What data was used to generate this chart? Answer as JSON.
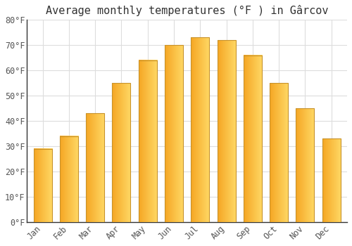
{
  "title": "Average monthly temperatures (°F ) in Gârcov",
  "months": [
    "Jan",
    "Feb",
    "Mar",
    "Apr",
    "May",
    "Jun",
    "Jul",
    "Aug",
    "Sep",
    "Oct",
    "Nov",
    "Dec"
  ],
  "values": [
    29,
    34,
    43,
    55,
    64,
    70,
    73,
    72,
    66,
    55,
    45,
    33
  ],
  "bar_color_left": "#F5A623",
  "bar_color_right": "#FFD966",
  "ylim": [
    0,
    80
  ],
  "yticks": [
    0,
    10,
    20,
    30,
    40,
    50,
    60,
    70,
    80
  ],
  "ytick_labels": [
    "0°F",
    "10°F",
    "20°F",
    "30°F",
    "40°F",
    "50°F",
    "60°F",
    "70°F",
    "80°F"
  ],
  "background_color": "#FFFFFF",
  "grid_color": "#DDDDDD",
  "bar_edge_color": "#C8922A",
  "title_fontsize": 11,
  "tick_fontsize": 8.5,
  "font_family": "monospace"
}
